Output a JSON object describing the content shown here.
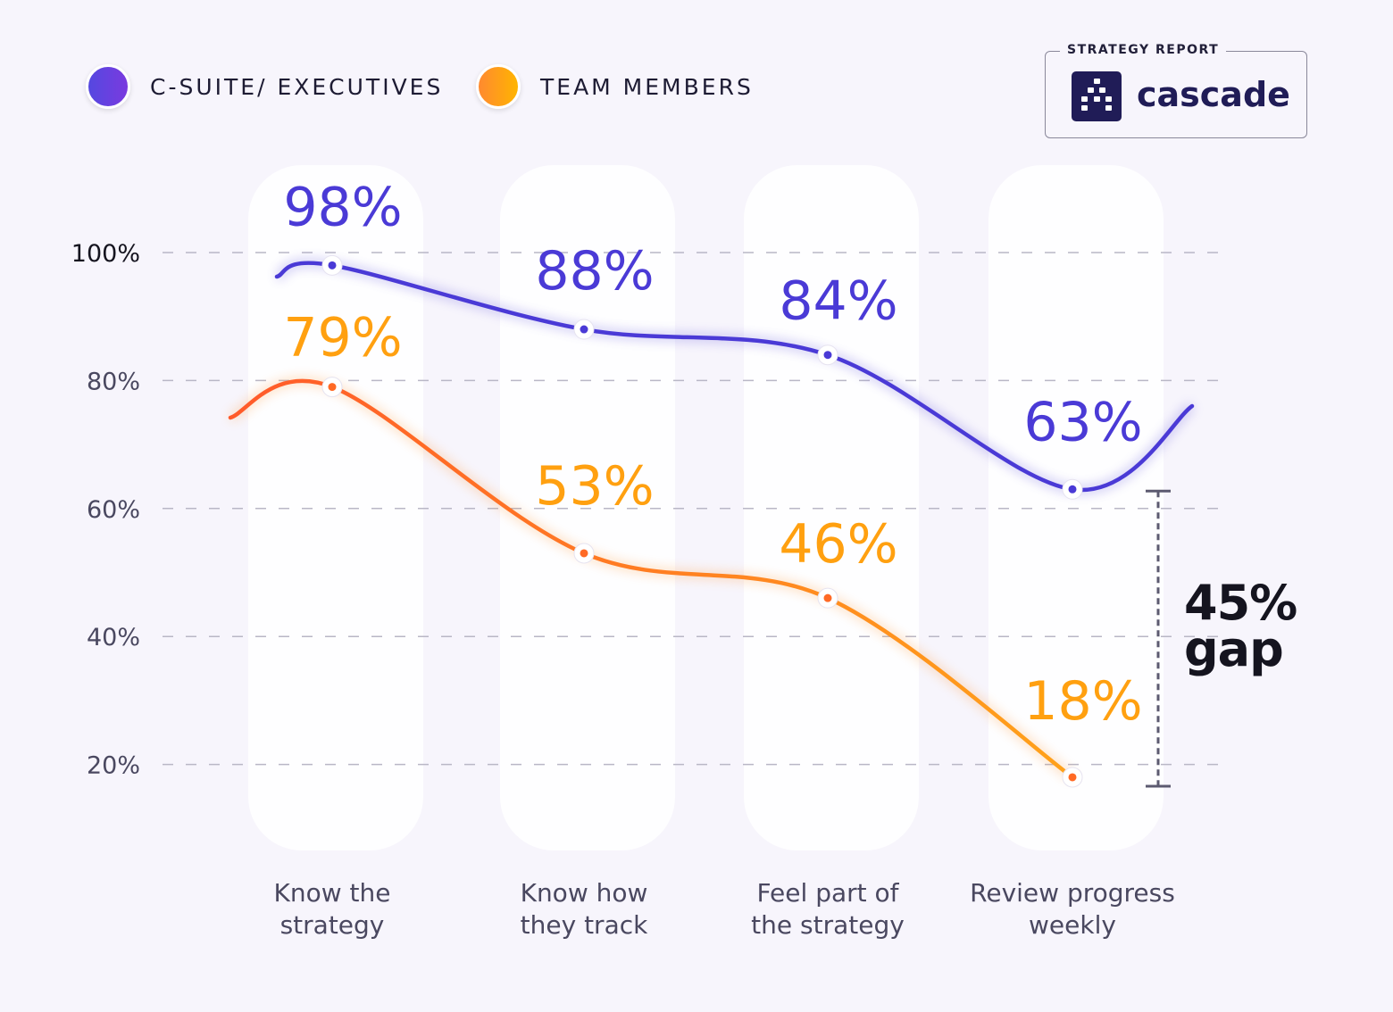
{
  "legend": [
    {
      "label": "C-SUITE/ EXECUTIVES",
      "color": "#4f3fd6"
    },
    {
      "label": "TEAM MEMBERS",
      "color": "#ff9a1f"
    }
  ],
  "badge": {
    "title": "STRATEGY REPORT",
    "brand": "cascade"
  },
  "annotation": {
    "value": "45%",
    "label": "gap"
  },
  "chart_data": {
    "type": "line",
    "categories": [
      "Know the strategy",
      "Know how they track",
      "Feel part of the strategy",
      "Review progress weekly"
    ],
    "category_lines": [
      [
        "Know the",
        "strategy"
      ],
      [
        "Know how",
        "they track"
      ],
      [
        "Feel part of",
        "the strategy"
      ],
      [
        "Review progress",
        "weekly"
      ]
    ],
    "yticks": [
      "100%",
      "80%",
      "60%",
      "40%",
      "20%"
    ],
    "ylim": [
      20,
      100
    ],
    "grid": true,
    "legend_position": "top-left",
    "series": [
      {
        "name": "C-SUITE/ EXECUTIVES",
        "values": [
          98,
          88,
          84,
          63
        ],
        "labels": [
          "98%",
          "88%",
          "84%",
          "63%"
        ],
        "color": "#4a3ad6"
      },
      {
        "name": "TEAM MEMBERS",
        "values": [
          79,
          53,
          46,
          18
        ],
        "labels": [
          "79%",
          "53%",
          "46%",
          "18%"
        ],
        "color": "#ff8a1f"
      }
    ]
  }
}
